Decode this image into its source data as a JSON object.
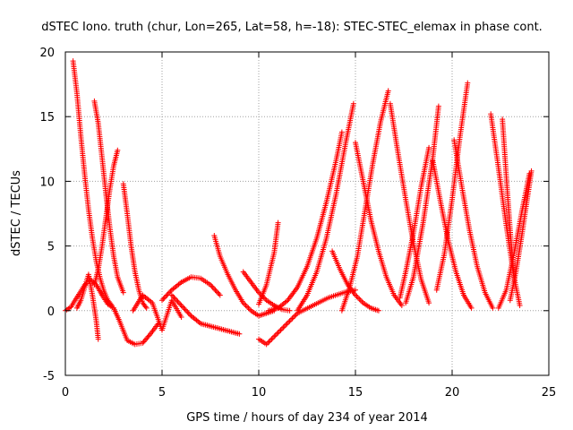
{
  "chart_data": {
    "type": "scatter",
    "title": "dSTEC Iono. truth (chur, Lon=265, Lat=58, h=-18): STEC-STEC_elemax in phase cont.",
    "xlabel": "GPS time / hours of day 234 of year 2014",
    "ylabel": "dSTEC  / TECUs",
    "xlim": [
      0,
      25
    ],
    "ylim": [
      -5,
      20
    ],
    "xticks": [
      0,
      5,
      10,
      15,
      20,
      25
    ],
    "yticks": [
      -5,
      0,
      5,
      10,
      15,
      20
    ],
    "xtick_labels": [
      "0",
      "5",
      "10",
      "15",
      "20",
      "25"
    ],
    "ytick_labels": [
      "-5",
      "0",
      "5",
      "10",
      "15",
      "20"
    ],
    "grid": true,
    "legend": "none",
    "marker": "plus",
    "color": "#ff0000",
    "series": [
      {
        "x": [
          0.0,
          0.3,
          0.5,
          0.8,
          1.0,
          1.3,
          1.6,
          1.9,
          2.2,
          2.5
        ],
        "y": [
          0.0,
          0.3,
          0.8,
          1.5,
          2.0,
          2.4,
          2.0,
          1.2,
          0.5,
          0.2
        ]
      },
      {
        "x": [
          0.4,
          0.6,
          0.8,
          1.0,
          1.2,
          1.4,
          1.6,
          1.8,
          2.0,
          2.2,
          2.4
        ],
        "y": [
          19.3,
          16.8,
          13.5,
          10.5,
          7.8,
          5.6,
          3.8,
          2.5,
          1.5,
          0.8,
          0.4
        ]
      },
      {
        "x": [
          0.6,
          0.8,
          1.0,
          1.2,
          1.4,
          1.6,
          1.7
        ],
        "y": [
          0.2,
          0.8,
          1.8,
          2.8,
          1.2,
          -0.8,
          -2.2
        ]
      },
      {
        "x": [
          1.5,
          1.7,
          1.9,
          2.1,
          2.3,
          2.5,
          2.7
        ],
        "y": [
          2.0,
          3.2,
          5.0,
          7.2,
          9.4,
          11.2,
          12.4
        ]
      },
      {
        "x": [
          1.5,
          1.7,
          1.9,
          2.1,
          2.3,
          2.5,
          2.7,
          3.0
        ],
        "y": [
          16.2,
          14.5,
          11.8,
          9.0,
          6.4,
          4.2,
          2.6,
          1.4
        ]
      },
      {
        "x": [
          3.0,
          3.2,
          3.4,
          3.6,
          3.8,
          4.0,
          4.2
        ],
        "y": [
          9.8,
          7.5,
          5.0,
          3.0,
          1.6,
          0.6,
          0.2
        ]
      },
      {
        "x": [
          2.5,
          2.8,
          3.2,
          3.6,
          4.0,
          4.4,
          4.8
        ],
        "y": [
          0.2,
          -0.8,
          -2.3,
          -2.6,
          -2.5,
          -1.8,
          -1.0
        ]
      },
      {
        "x": [
          3.5,
          4.0,
          4.5,
          5.0,
          5.5,
          6.0
        ],
        "y": [
          0.0,
          1.2,
          0.6,
          -1.5,
          0.8,
          -0.5
        ]
      },
      {
        "x": [
          5.0,
          5.5,
          6.0,
          6.5,
          7.0,
          7.5,
          8.0
        ],
        "y": [
          0.8,
          1.6,
          2.2,
          2.6,
          2.5,
          2.0,
          1.2
        ]
      },
      {
        "x": [
          5.5,
          6.0,
          6.5,
          7.0,
          7.5,
          8.0,
          8.5,
          9.0
        ],
        "y": [
          1.2,
          0.4,
          -0.4,
          -1.0,
          -1.2,
          -1.4,
          -1.6,
          -1.8
        ]
      },
      {
        "x": [
          7.7,
          8.0,
          8.4,
          8.8,
          9.2,
          9.6,
          10.0,
          10.4,
          10.8
        ],
        "y": [
          5.8,
          4.2,
          2.8,
          1.6,
          0.6,
          0.0,
          -0.4,
          -0.2,
          0.0
        ]
      },
      {
        "x": [
          9.2,
          9.6,
          10.0,
          10.4,
          10.8,
          11.2,
          11.6
        ],
        "y": [
          3.0,
          2.2,
          1.4,
          0.8,
          0.4,
          0.1,
          0.0
        ]
      },
      {
        "x": [
          10.0,
          10.4,
          10.8,
          11.2,
          11.6,
          12.0,
          12.8,
          13.6,
          14.4,
          15.0
        ],
        "y": [
          -2.2,
          -2.6,
          -2.0,
          -1.4,
          -0.8,
          -0.2,
          0.4,
          1.0,
          1.4,
          1.6
        ]
      },
      {
        "x": [
          10.0,
          10.4,
          10.8,
          11.0
        ],
        "y": [
          0.5,
          2.0,
          4.5,
          6.8
        ]
      },
      {
        "x": [
          10.5,
          11.0,
          11.5,
          12.0,
          12.5,
          13.0,
          13.5,
          14.0,
          14.3
        ],
        "y": [
          0.0,
          0.2,
          0.8,
          1.8,
          3.4,
          5.6,
          8.4,
          11.6,
          13.8
        ]
      },
      {
        "x": [
          12.0,
          12.5,
          13.0,
          13.5,
          14.0,
          14.5,
          14.9
        ],
        "y": [
          0.0,
          1.2,
          3.0,
          5.6,
          9.0,
          13.0,
          16.0
        ]
      },
      {
        "x": [
          13.8,
          14.2,
          14.6,
          15.0,
          15.4,
          15.8,
          16.2
        ],
        "y": [
          4.6,
          3.2,
          2.0,
          1.2,
          0.6,
          0.2,
          0.0
        ]
      },
      {
        "x": [
          14.3,
          14.7,
          15.1,
          15.5,
          15.9,
          16.3,
          16.7
        ],
        "y": [
          0.0,
          1.8,
          4.2,
          7.8,
          11.4,
          14.6,
          17.0
        ]
      },
      {
        "x": [
          15.0,
          15.4,
          15.8,
          16.2,
          16.6,
          17.0,
          17.4
        ],
        "y": [
          13.0,
          10.0,
          7.0,
          4.6,
          2.6,
          1.2,
          0.4
        ]
      },
      {
        "x": [
          16.8,
          17.2,
          17.6,
          18.0,
          18.4,
          18.8
        ],
        "y": [
          16.0,
          12.2,
          8.6,
          5.2,
          2.4,
          0.6
        ]
      },
      {
        "x": [
          17.3,
          17.6,
          18.0,
          18.4,
          18.8
        ],
        "y": [
          1.0,
          3.0,
          6.0,
          9.6,
          12.6
        ]
      },
      {
        "x": [
          17.6,
          18.0,
          18.5,
          19.0,
          19.3
        ],
        "y": [
          0.6,
          2.6,
          6.8,
          11.8,
          15.8
        ]
      },
      {
        "x": [
          19.0,
          19.4,
          19.8,
          20.2,
          20.6,
          21.0
        ],
        "y": [
          11.6,
          8.4,
          5.4,
          3.0,
          1.2,
          0.2
        ]
      },
      {
        "x": [
          19.2,
          19.6,
          20.0,
          20.4,
          20.8
        ],
        "y": [
          1.6,
          4.4,
          8.6,
          13.4,
          17.6
        ]
      },
      {
        "x": [
          20.1,
          20.5,
          20.9,
          21.3,
          21.7,
          22.1
        ],
        "y": [
          13.2,
          9.6,
          6.2,
          3.4,
          1.4,
          0.2
        ]
      },
      {
        "x": [
          22.0,
          22.4,
          22.8,
          23.2
        ],
        "y": [
          15.2,
          11.0,
          6.6,
          2.6
        ]
      },
      {
        "x": [
          22.6,
          22.8,
          23.0,
          23.2,
          23.5
        ],
        "y": [
          14.8,
          10.4,
          6.2,
          2.6,
          0.4
        ]
      },
      {
        "x": [
          22.4,
          22.8,
          23.2,
          23.6,
          24.0
        ],
        "y": [
          0.2,
          1.6,
          4.4,
          7.6,
          10.6
        ]
      },
      {
        "x": [
          23.0,
          23.3,
          23.6,
          23.9,
          24.1
        ],
        "y": [
          0.8,
          3.0,
          5.8,
          8.8,
          10.8
        ]
      }
    ]
  }
}
